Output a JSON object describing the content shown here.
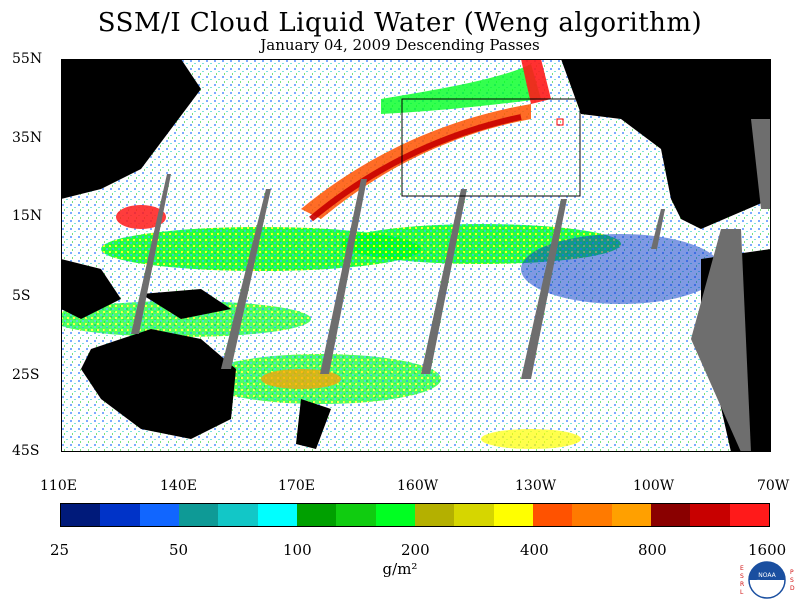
{
  "title": "SSM/I Cloud Liquid Water (Weng algorithm)",
  "subtitle": "January 04, 2009  Descending Passes",
  "lat_labels": [
    "55N",
    "35N",
    "15N",
    "5S",
    "25S",
    "45S"
  ],
  "lon_labels": [
    "110E",
    "140E",
    "170E",
    "160W",
    "130W",
    "100W",
    "70W"
  ],
  "colorbar": {
    "colors": [
      "#001a7a",
      "#0033c8",
      "#1166ff",
      "#0e9a96",
      "#12c7c7",
      "#00ffff",
      "#00a000",
      "#10cc10",
      "#00ff22",
      "#b4b000",
      "#d6d600",
      "#ffff00",
      "#ff5200",
      "#ff7a00",
      "#ffa000",
      "#8a0000",
      "#c80000",
      "#ff1a1a"
    ],
    "labels": [
      "25",
      "50",
      "100",
      "200",
      "400",
      "800",
      "1600"
    ]
  },
  "units": "g/m²",
  "logo": {
    "left_letters": "ESRL",
    "right_letters": "PSD",
    "center_text": "NOAA"
  },
  "colors": {
    "land": "#000000",
    "ocean_clear": "#ffffff",
    "no_data": "#6e6e6e",
    "inset_box": "#000000"
  }
}
